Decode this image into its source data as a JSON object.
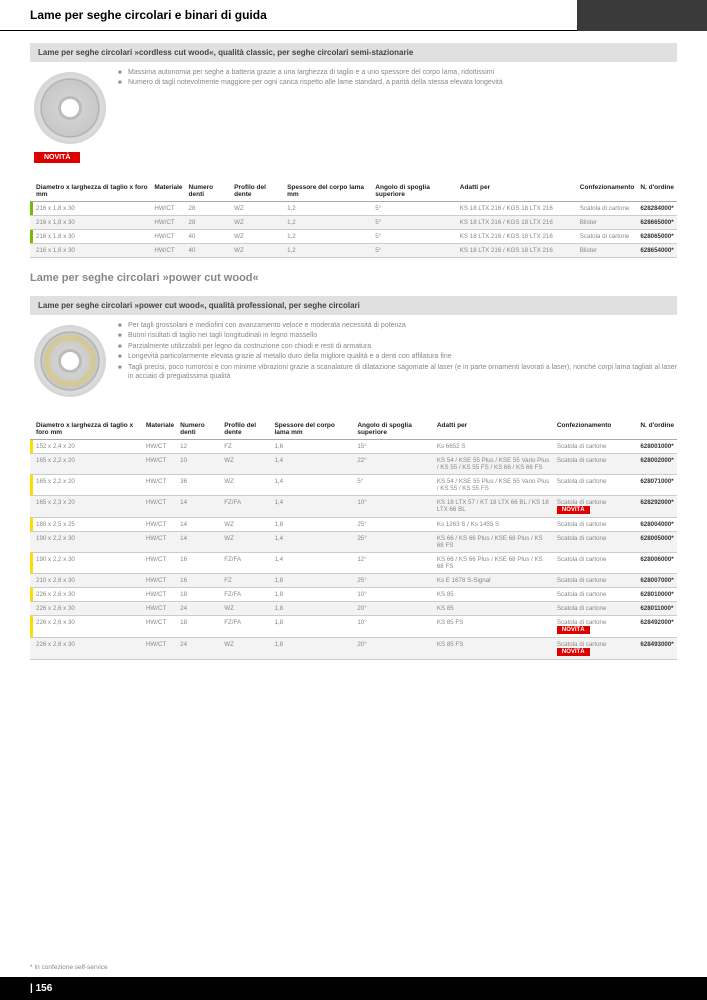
{
  "page_title": "Lame per seghe circolari e binari di guida",
  "page_number": "| 156",
  "footnote": "* In confezione self-service",
  "novita_label": "NOVITÀ",
  "section1": {
    "header": "Lame per seghe circolari »cordless cut wood«, qualità classic, per seghe circolari semi-stazionarie",
    "bullets": [
      "Massima autonomia per seghe a batteria grazie a una larghezza di taglio e a uno spessore del corpo lama, ridottissimi",
      "Numero di tagli notevolmente maggiore per ogni carica rispetto alle lame standard, a parità della stessa elevata longevità"
    ],
    "show_novita": true
  },
  "table_columns": {
    "c1": "Diametro x larghezza di taglio x foro mm",
    "c2": "Materiale",
    "c3": "Numero denti",
    "c4": "Profilo del dente",
    "c5": "Spessore del corpo lama mm",
    "c6": "Angolo di spoglia superiore",
    "c7": "Adatti per",
    "c8": "Confezionamento",
    "c9": "N. d'ordine"
  },
  "table1_rows": [
    {
      "mark": "green",
      "dim": "216 x 1,8 x 30",
      "mat": "HW/CT",
      "denti": "28",
      "prof": "WZ",
      "sp": "1,2",
      "ang": "5°",
      "per": "KS 18 LTX 216 / KGS 18 LTX 216",
      "conf": "Scatola di cartone",
      "ord": "628284000*",
      "nov": false
    },
    {
      "mark": "green",
      "dim": "216 x 1,8 x 30",
      "mat": "HW/CT",
      "denti": "28",
      "prof": "WZ",
      "sp": "1,2",
      "ang": "5°",
      "per": "KS 18 LTX 216 / KGS 18 LTX 216",
      "conf": "Blister",
      "ord": "628665000*",
      "nov": false
    },
    {
      "mark": "green",
      "dim": "216 x 1,8 x 30",
      "mat": "HW/CT",
      "denti": "40",
      "prof": "WZ",
      "sp": "1,2",
      "ang": "5°",
      "per": "KS 18 LTX 216 / KGS 18 LTX 216",
      "conf": "Scatola di cartone",
      "ord": "628065000*",
      "nov": false
    },
    {
      "mark": "green",
      "dim": "216 x 1,8 x 30",
      "mat": "HW/CT",
      "denti": "40",
      "prof": "WZ",
      "sp": "1,2",
      "ang": "5°",
      "per": "KS 18 LTX 216 / KGS 18 LTX 216",
      "conf": "Blister",
      "ord": "628654000*",
      "nov": false
    }
  ],
  "subtitle2": "Lame per seghe circolari »power cut wood«",
  "section2": {
    "header": "Lame per seghe circolari »power cut wood«, qualità professional, per seghe circolari",
    "bullets": [
      "Per tagli grossolani e mediofini con avanzamento veloce e moderata necessità di potenza",
      "Buoni risultati di taglio nei tagli longitudinali in legno massello",
      "Parzialmente utilizzabili per legno da costruzione con chiodi e resti di armatura",
      "Longevità particolarmente elevata grazie al metallo duro della migliore qualità e a denti con affilatura fine",
      "Tagli precisi, poco rumorosi e con minime vibrazioni grazie a scanalature di dilatazione sagomate al laser (e in parte ornamenti lavorati a laser), nonché corpi lama tagliati al laser in acciaio di pregiatissima qualità"
    ]
  },
  "table2_rows": [
    {
      "mark": "yellow",
      "dim": "152 x 2,4 x 20",
      "mat": "HW/CT",
      "denti": "12",
      "prof": "FZ",
      "sp": "1,6",
      "ang": "15°",
      "per": "Ks 6652 S",
      "conf": "Scatola di cartone",
      "ord": "628001000*",
      "nov": false
    },
    {
      "mark": "yellow",
      "dim": "165 x 2,2 x 20",
      "mat": "HW/CT",
      "denti": "10",
      "prof": "WZ",
      "sp": "1,4",
      "ang": "22°",
      "per": "KS 54 / KSE 55 Plus / KSE 55 Vario Plus / KS 55 / KS 55 FS / KS 66 / KS 66 FS",
      "conf": "Scatola di cartone",
      "ord": "628002000*",
      "nov": false
    },
    {
      "mark": "yellow",
      "dim": "165 x 2,2 x 20",
      "mat": "HW/CT",
      "denti": "36",
      "prof": "WZ",
      "sp": "1,4",
      "ang": "5°",
      "per": "KS 54 / KSE 55 Plus / KSE 55 Vario Plus / KS 55 / KS 55 FS",
      "conf": "Scatola di cartone",
      "ord": "628071000*",
      "nov": false
    },
    {
      "mark": "yellow",
      "dim": "165 x 2,3 x 20",
      "mat": "HW/CT",
      "denti": "14",
      "prof": "FZ/FA",
      "sp": "1,4",
      "ang": "10°",
      "per": "KS 18 LTX 57 / KT 18 LTX 66 BL / KS 18 LTX 66 BL",
      "conf": "Scatola di cartone",
      "ord": "628292000*",
      "nov": true
    },
    {
      "mark": "yellow",
      "dim": "180 x 2,5 x 25",
      "mat": "HW/CT",
      "denti": "14",
      "prof": "WZ",
      "sp": "1,8",
      "ang": "25°",
      "per": "Ks 1263 S / Ks 1455 S",
      "conf": "Scatola di cartone",
      "ord": "628004000*",
      "nov": false
    },
    {
      "mark": "yellow",
      "dim": "190 x 2,2 x 30",
      "mat": "HW/CT",
      "denti": "14",
      "prof": "WZ",
      "sp": "1,4",
      "ang": "25°",
      "per": "KS 66 / KS 66 Plus / KSE 68 Plus / KS 68 FS",
      "conf": "Scatola di cartone",
      "ord": "628005000*",
      "nov": false
    },
    {
      "mark": "yellow",
      "dim": "190 x 2,2 x 30",
      "mat": "HW/CT",
      "denti": "16",
      "prof": "FZ/FA",
      "sp": "1,4",
      "ang": "12°",
      "per": "KS 66 / KS 66 Plus / KSE 68 Plus / KS 68 FS",
      "conf": "Scatola di cartone",
      "ord": "628006000*",
      "nov": false
    },
    {
      "mark": "lgrey",
      "dim": "210 x 2,6 x 30",
      "mat": "HW/CT",
      "denti": "16",
      "prof": "FZ",
      "sp": "1,8",
      "ang": "25°",
      "per": "Ks E 1678 S-Signal",
      "conf": "Scatola di cartone",
      "ord": "628007000*",
      "nov": false
    },
    {
      "mark": "yellow",
      "dim": "226 x 2,6 x 30",
      "mat": "HW/CT",
      "denti": "18",
      "prof": "FZ/FA",
      "sp": "1,8",
      "ang": "10°",
      "per": "KS 85",
      "conf": "Scatola di cartone",
      "ord": "628010000*",
      "nov": false
    },
    {
      "mark": "yellow",
      "dim": "226 x 2,6 x 30",
      "mat": "HW/CT",
      "denti": "24",
      "prof": "WZ",
      "sp": "1,8",
      "ang": "20°",
      "per": "KS 85",
      "conf": "Scatola di cartone",
      "ord": "628011000*",
      "nov": false
    },
    {
      "mark": "yellow",
      "dim": "226 x 2,6 x 30",
      "mat": "HW/CT",
      "denti": "18",
      "prof": "FZ/FA",
      "sp": "1,8",
      "ang": "10°",
      "per": "KS 85 FS",
      "conf": "Scatola di cartone",
      "ord": "628492000*",
      "nov": true
    },
    {
      "mark": "yellow",
      "dim": "226 x 2,6 x 30",
      "mat": "HW/CT",
      "denti": "24",
      "prof": "WZ",
      "sp": "1,8",
      "ang": "20°",
      "per": "KS 85 FS",
      "conf": "Scatola di cartone",
      "ord": "628493000*",
      "nov": true
    }
  ]
}
